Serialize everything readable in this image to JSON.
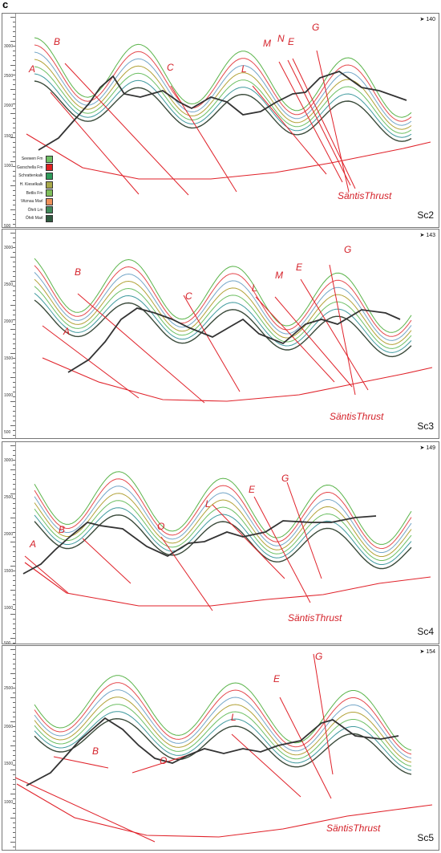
{
  "figure_label": "c",
  "colors": {
    "fault": "#e0222a",
    "topography": "#333333",
    "layers": [
      "#5ab44a",
      "#e5484d",
      "#74a6c8",
      "#b2a238",
      "#6dbf63",
      "#3f9a9e",
      "#3a4a3a"
    ]
  },
  "legend": [
    {
      "name": "Seewen Fm",
      "color": "#6dbf63"
    },
    {
      "name": "Garschella Fm",
      "color": "#e02020"
    },
    {
      "name": "Schrattenkalk",
      "color": "#2e9b5a"
    },
    {
      "name": "H. Kieselkalk",
      "color": "#a9a94a"
    },
    {
      "name": "Betlis Fm",
      "color": "#7fbf5a"
    },
    {
      "name": "Vitznau Marl",
      "color": "#f0915a"
    },
    {
      "name": "Öhrli Lm",
      "color": "#3f8a5a"
    },
    {
      "name": "Öhrli Marl",
      "color": "#2f5a3f"
    }
  ],
  "panels": [
    {
      "id": "Sc2",
      "azimuth": "140",
      "ticks": [
        "3000",
        "2500",
        "2000",
        "1500",
        "1000",
        "500"
      ],
      "thrust_label": "SäntisThrust",
      "faults": [
        {
          "label": "A"
        },
        {
          "label": "B"
        },
        {
          "label": "C"
        },
        {
          "label": "L"
        },
        {
          "label": "M"
        },
        {
          "label": "N"
        },
        {
          "label": "E"
        },
        {
          "label": "G"
        }
      ]
    },
    {
      "id": "Sc3",
      "azimuth": "143",
      "ticks": [
        "3000",
        "2500",
        "2000",
        "1500",
        "1000",
        "500"
      ],
      "thrust_label": "SäntisThrust",
      "faults": [
        {
          "label": "A"
        },
        {
          "label": "B"
        },
        {
          "label": "C"
        },
        {
          "label": "L"
        },
        {
          "label": "M"
        },
        {
          "label": "E"
        },
        {
          "label": "G"
        }
      ]
    },
    {
      "id": "Sc4",
      "azimuth": "149",
      "ticks": [
        "3000",
        "2500",
        "2000",
        "1500",
        "1000",
        "500"
      ],
      "thrust_label": "SäntisThrust",
      "faults": [
        {
          "label": "A"
        },
        {
          "label": "B"
        },
        {
          "label": "O"
        },
        {
          "label": "L"
        },
        {
          "label": "E"
        },
        {
          "label": "G"
        }
      ]
    },
    {
      "id": "Sc5",
      "azimuth": "154",
      "ticks": [
        "2500",
        "2000",
        "1500",
        "1000"
      ],
      "thrust_label": "SäntisThrust",
      "faults": [
        {
          "label": "B"
        },
        {
          "label": "O"
        },
        {
          "label": "L"
        },
        {
          "label": "E"
        },
        {
          "label": "G"
        }
      ]
    }
  ]
}
